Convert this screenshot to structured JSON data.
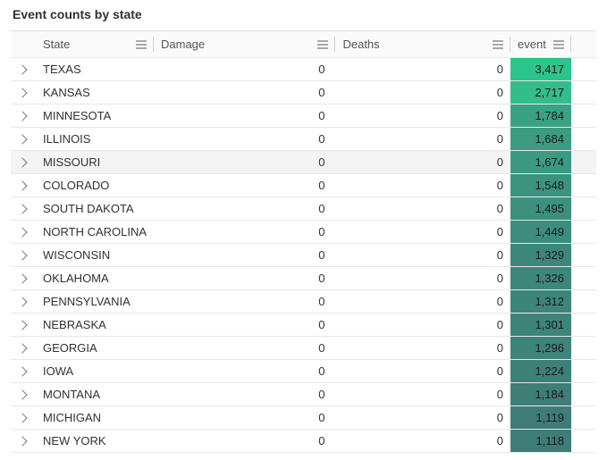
{
  "title": "Event counts by state",
  "columns": {
    "state": {
      "label": "State"
    },
    "damage": {
      "label": "Damage"
    },
    "deaths": {
      "label": "Deaths"
    },
    "event": {
      "label": "event"
    }
  },
  "heatmap": {
    "min_value": 1118,
    "max_value": 3417,
    "colors": {
      "high": "#2bc48b",
      "low": "#3d7c77"
    }
  },
  "hovered_row_index": 4,
  "rows": [
    {
      "state": "TEXAS",
      "damage": 0,
      "deaths": 0,
      "event": 3417,
      "event_display": "3,417",
      "event_bg": "#2bc48b"
    },
    {
      "state": "KANSAS",
      "damage": 0,
      "deaths": 0,
      "event": 2717,
      "event_display": "2,717",
      "event_bg": "#32bd8b"
    },
    {
      "state": "MINNESOTA",
      "damage": 0,
      "deaths": 0,
      "event": 1784,
      "event_display": "1,784",
      "event_bg": "#3aa284"
    },
    {
      "state": "ILLINOIS",
      "damage": 0,
      "deaths": 0,
      "event": 1684,
      "event_display": "1,684",
      "event_bg": "#3b9c82"
    },
    {
      "state": "MISSOURI",
      "damage": 0,
      "deaths": 0,
      "event": 1674,
      "event_display": "1,674",
      "event_bg": "#3b9b82"
    },
    {
      "state": "COLORADO",
      "damage": 0,
      "deaths": 0,
      "event": 1548,
      "event_display": "1,548",
      "event_bg": "#3c937f"
    },
    {
      "state": "SOUTH DAKOTA",
      "damage": 0,
      "deaths": 0,
      "event": 1495,
      "event_display": "1,495",
      "event_bg": "#3c907e"
    },
    {
      "state": "NORTH CAROLINA",
      "damage": 0,
      "deaths": 0,
      "event": 1449,
      "event_display": "1,449",
      "event_bg": "#3c8d7d"
    },
    {
      "state": "WISCONSIN",
      "damage": 0,
      "deaths": 0,
      "event": 1329,
      "event_display": "1,329",
      "event_bg": "#3d867a"
    },
    {
      "state": "OKLAHOMA",
      "damage": 0,
      "deaths": 0,
      "event": 1326,
      "event_display": "1,326",
      "event_bg": "#3d867a"
    },
    {
      "state": "PENNSYLVANIA",
      "damage": 0,
      "deaths": 0,
      "event": 1312,
      "event_display": "1,312",
      "event_bg": "#3d857a"
    },
    {
      "state": "NEBRASKA",
      "damage": 0,
      "deaths": 0,
      "event": 1301,
      "event_display": "1,301",
      "event_bg": "#3d8479"
    },
    {
      "state": "GEORGIA",
      "damage": 0,
      "deaths": 0,
      "event": 1296,
      "event_display": "1,296",
      "event_bg": "#3d8479"
    },
    {
      "state": "IOWA",
      "damage": 0,
      "deaths": 0,
      "event": 1224,
      "event_display": "1,224",
      "event_bg": "#3d8078"
    },
    {
      "state": "MONTANA",
      "damage": 0,
      "deaths": 0,
      "event": 1184,
      "event_display": "1,184",
      "event_bg": "#3d7e77"
    },
    {
      "state": "MICHIGAN",
      "damage": 0,
      "deaths": 0,
      "event": 1119,
      "event_display": "1,119",
      "event_bg": "#3d7c77"
    },
    {
      "state": "NEW YORK",
      "damage": 0,
      "deaths": 0,
      "event": 1118,
      "event_display": "1,118",
      "event_bg": "#3d7c77"
    }
  ]
}
